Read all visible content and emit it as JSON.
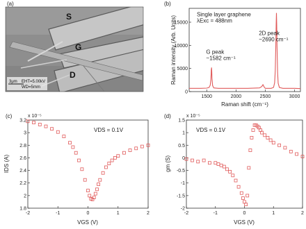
{
  "panels": {
    "a": {
      "label": "(a)",
      "electrodes": [
        "S",
        "G",
        "D"
      ],
      "scalebar": "3μm",
      "eht": "EHT=5.00kV",
      "wd": "WD=5mm"
    },
    "b": {
      "label": "(b)"
    },
    "c": {
      "label": "(c)"
    },
    "d": {
      "label": "(d)"
    }
  },
  "chart_data": [
    {
      "id": "b",
      "type": "line",
      "xlabel": "Raman shift (cm⁻¹)",
      "ylabel": "Raman intensity (Arb. Units)",
      "xlim": [
        1200,
        3100
      ],
      "ylim": [
        0,
        18000
      ],
      "xticks": [
        1500,
        2000,
        2500,
        3000
      ],
      "yticks": [
        0,
        5000,
        10000,
        15000
      ],
      "color": "#e05a5a",
      "x": [
        1200,
        1300,
        1400,
        1500,
        1540,
        1560,
        1570,
        1575,
        1578,
        1582,
        1586,
        1590,
        1600,
        1620,
        1700,
        1800,
        2000,
        2200,
        2400,
        2440,
        2460,
        2480,
        2500,
        2600,
        2640,
        2660,
        2670,
        2680,
        2685,
        2690,
        2695,
        2700,
        2710,
        2720,
        2740,
        2800,
        2900,
        3000,
        3100
      ],
      "y": [
        700,
        700,
        700,
        750,
        900,
        1400,
        2600,
        3800,
        4700,
        5200,
        4400,
        2900,
        1300,
        800,
        700,
        700,
        700,
        700,
        800,
        1100,
        1500,
        1000,
        700,
        700,
        900,
        1900,
        4500,
        10000,
        14500,
        17000,
        14500,
        10000,
        4000,
        1800,
        900,
        700,
        700,
        700,
        650
      ],
      "annotations": [
        {
          "lines": [
            "Single layer graphene",
            "λExc = 488nm"
          ],
          "at": [
            1330,
            16300
          ]
        },
        {
          "lines": [
            "G peak",
            "~1582 cm⁻¹"
          ],
          "at": [
            1490,
            8200
          ]
        },
        {
          "lines": [
            "2D peak",
            "~2690 cm⁻¹"
          ],
          "at": [
            2390,
            12200
          ]
        }
      ]
    },
    {
      "id": "c",
      "type": "scatter",
      "xlabel": "VGS (V)",
      "ylabel": "IDS (A)",
      "exponent": "x 10⁻⁵",
      "xlim": [
        -2,
        2
      ],
      "ylim": [
        1.8,
        3.2
      ],
      "xticks": [
        -2,
        -1,
        0,
        1,
        2
      ],
      "yticks": [
        1.8,
        2.0,
        2.2,
        2.4,
        2.6,
        2.8,
        3.0,
        3.2
      ],
      "ytick_labels": [
        "1.8",
        "2",
        "2.2",
        "2.4",
        "2.6",
        "2.8",
        "3",
        "3.2"
      ],
      "color": "#e05a5a",
      "annotation": "VDS = 0.1V",
      "x": [
        -2.0,
        -1.8,
        -1.6,
        -1.4,
        -1.2,
        -1.0,
        -0.8,
        -0.6,
        -0.5,
        -0.4,
        -0.3,
        -0.2,
        -0.1,
        0.0,
        0.05,
        0.1,
        0.15,
        0.2,
        0.25,
        0.3,
        0.35,
        0.4,
        0.5,
        0.6,
        0.7,
        0.8,
        0.9,
        1.0,
        1.2,
        1.4,
        1.6,
        1.8,
        2.0
      ],
      "y": [
        3.18,
        3.16,
        3.13,
        3.1,
        3.06,
        3.01,
        2.94,
        2.84,
        2.77,
        2.68,
        2.56,
        2.42,
        2.25,
        2.08,
        2.0,
        1.95,
        1.94,
        1.97,
        2.03,
        2.1,
        2.18,
        2.25,
        2.36,
        2.45,
        2.51,
        2.56,
        2.6,
        2.63,
        2.68,
        2.72,
        2.75,
        2.78,
        2.8
      ]
    },
    {
      "id": "d",
      "type": "scatter",
      "xlabel": "VGS (V)",
      "ylabel": "gm (S)",
      "exponent": "x 10⁻⁵",
      "xlim": [
        -2,
        2
      ],
      "ylim": [
        -2,
        1.5
      ],
      "xticks": [
        -2,
        -1,
        0,
        1,
        2
      ],
      "yticks": [
        -2,
        -1.5,
        -1,
        -0.5,
        0,
        0.5,
        1,
        1.5
      ],
      "ytick_labels": [
        "-2",
        "-1.5",
        "-1",
        "-0.5",
        "0",
        "0.5",
        "1",
        "1.5"
      ],
      "color": "#e05a5a",
      "annotation": "VDS = 0.1V",
      "x": [
        -2.0,
        -1.8,
        -1.6,
        -1.4,
        -1.2,
        -1.0,
        -0.9,
        -0.8,
        -0.7,
        -0.6,
        -0.5,
        -0.4,
        -0.3,
        -0.2,
        -0.1,
        -0.05,
        0.0,
        0.05,
        0.1,
        0.15,
        0.2,
        0.25,
        0.3,
        0.35,
        0.4,
        0.45,
        0.5,
        0.55,
        0.6,
        0.7,
        0.8,
        0.9,
        1.0,
        1.2,
        1.4,
        1.6,
        1.8,
        2.0
      ],
      "y": [
        -0.05,
        -0.1,
        -0.15,
        -0.1,
        -0.2,
        -0.2,
        -0.25,
        -0.3,
        -0.35,
        -0.45,
        -0.55,
        -0.7,
        -0.9,
        -1.15,
        -1.4,
        -1.6,
        -1.75,
        -1.85,
        -1.5,
        -0.4,
        0.3,
        0.8,
        1.1,
        1.3,
        1.3,
        1.25,
        1.2,
        1.1,
        1.0,
        0.9,
        0.8,
        0.7,
        0.6,
        0.5,
        0.4,
        0.25,
        0.15,
        0.05
      ]
    }
  ]
}
